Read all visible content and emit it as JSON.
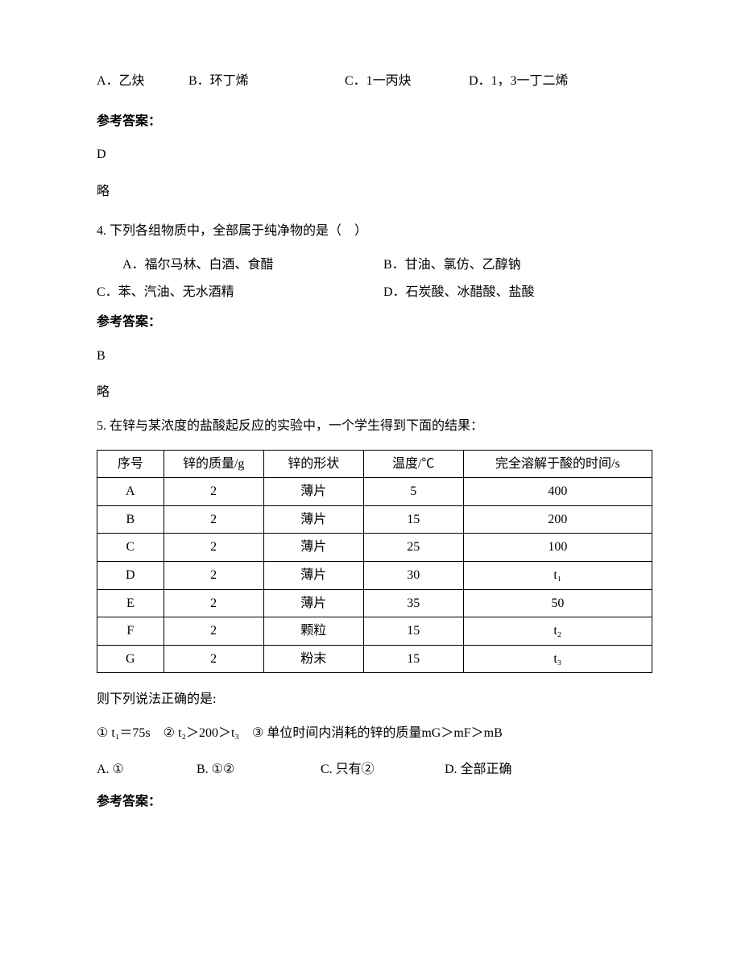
{
  "q_prev": {
    "options": {
      "a": "A．乙炔",
      "b": "B．环丁烯",
      "c": "C．1一丙炔",
      "d": "D．1，3一丁二烯"
    },
    "answer_label": "参考答案：",
    "answer": "D",
    "lue": "略"
  },
  "q4": {
    "text": "4. 下列各组物质中，全部属于纯净物的是（　）",
    "options": {
      "a": "A．福尔马林、白酒、食醋",
      "b": "B．甘油、氯仿、乙醇钠",
      "c": "C．苯、汽油、无水酒精",
      "d": "D．石炭酸、冰醋酸、盐酸"
    },
    "answer_label": "参考答案：",
    "answer": "B",
    "lue": "略"
  },
  "q5": {
    "text": "5. 在锌与某浓度的盐酸起反应的实验中，一个学生得到下面的结果：",
    "table": {
      "headers": [
        "序号",
        "锌的质量/g",
        "锌的形状",
        "温度/℃",
        "完全溶解于酸的时间/s"
      ],
      "rows": [
        [
          "A",
          "2",
          "薄片",
          "5",
          "400"
        ],
        [
          "B",
          "2",
          "薄片",
          "15",
          "200"
        ],
        [
          "C",
          "2",
          "薄片",
          "25",
          "100"
        ],
        [
          "D",
          "2",
          "薄片",
          "30",
          "t₁"
        ],
        [
          "E",
          "2",
          "薄片",
          "35",
          "50"
        ],
        [
          "F",
          "2",
          "颗粒",
          "15",
          "t₂"
        ],
        [
          "G",
          "2",
          "粉末",
          "15",
          "t₃"
        ]
      ]
    },
    "followup": "则下列说法正确的是:",
    "statements": "① t₁＝75s　② t₂＞200＞t₃　③ 单位时间内消耗的锌的质量mG＞mF＞mB",
    "options": {
      "a": "A. ①",
      "b": "B. ①②",
      "c": "C. 只有②",
      "d": "D. 全部正确"
    },
    "answer_label": "参考答案："
  }
}
